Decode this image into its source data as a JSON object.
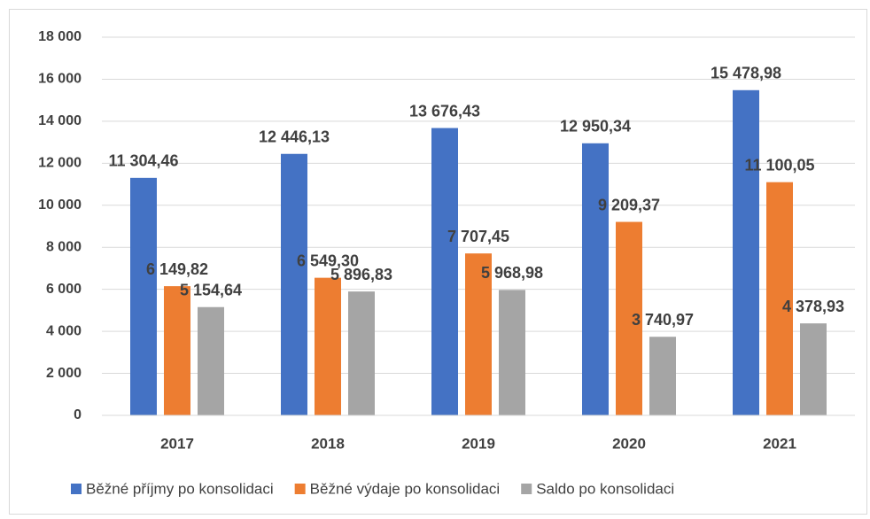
{
  "chart_data": {
    "type": "bar",
    "categories": [
      "2017",
      "2018",
      "2019",
      "2020",
      "2021"
    ],
    "series": [
      {
        "name": "Běžné příjmy po konsolidaci",
        "color": "#4472c4",
        "values": [
          11304.46,
          12446.13,
          13676.43,
          12950.34,
          15478.98
        ],
        "value_labels": [
          "11 304,46",
          "12 446,13",
          "13 676,43",
          "12 950,34",
          "15 478,98"
        ]
      },
      {
        "name": "Běžné výdaje po konsolidaci",
        "color": "#ed7d31",
        "values": [
          6149.82,
          6549.3,
          7707.45,
          9209.37,
          11100.05
        ],
        "value_labels": [
          "6 149,82",
          "6 549,30",
          "7 707,45",
          "9 209,37",
          "11 100,05"
        ]
      },
      {
        "name": "Saldo po konsolidaci",
        "color": "#a5a5a5",
        "values": [
          5154.64,
          5896.83,
          5968.98,
          3740.97,
          4378.93
        ],
        "value_labels": [
          "5 154,64",
          "5 896,83",
          "5 968,98",
          "3 740,97",
          "4 378,93"
        ]
      }
    ],
    "ylim": [
      0,
      18000
    ],
    "yticks": [
      0,
      {
        "value": 2000,
        "label": "2 000"
      },
      {
        "value": 4000,
        "label": "4 000"
      },
      {
        "value": 6000,
        "label": "6 000"
      },
      {
        "value": 8000,
        "label": "8 000"
      },
      {
        "value": 10000,
        "label": "10 000"
      },
      {
        "value": 12000,
        "label": "12 000"
      },
      {
        "value": 14000,
        "label": "14 000"
      },
      {
        "value": 16000,
        "label": "16 000"
      },
      {
        "value": 18000,
        "label": "18 000"
      }
    ],
    "grid": true,
    "legend": "bottom"
  }
}
